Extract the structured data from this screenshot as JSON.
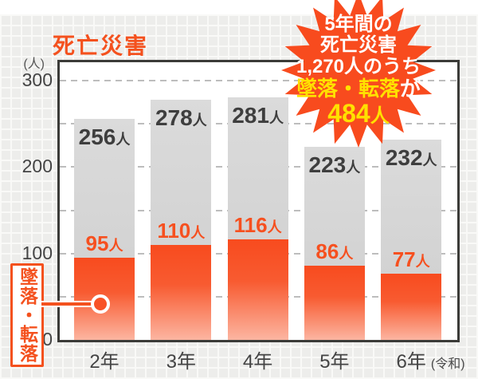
{
  "title": "死亡災害",
  "y_axis": {
    "unit": "(人)",
    "ticks": [
      {
        "label": "300",
        "value": 300
      },
      {
        "label": "200",
        "value": 200
      },
      {
        "label": "100",
        "value": 100
      },
      {
        "label": "0",
        "value": 0
      }
    ]
  },
  "x_axis": {
    "labels": [
      "2年",
      "3年",
      "4年",
      "5年",
      "6年"
    ],
    "era_suffix": "(令和)"
  },
  "chart_data": {
    "type": "bar",
    "stacked": true,
    "title": "死亡災害",
    "categories": [
      "2年",
      "3年",
      "4年",
      "5年",
      "6年"
    ],
    "x_note": "(令和)",
    "series": [
      {
        "name": "死亡災害（総数）",
        "color": "#d5d5d5",
        "values": [
          256,
          278,
          281,
          223,
          232
        ]
      },
      {
        "name": "墜落・転落",
        "color": "#f84b1e",
        "values": [
          95,
          110,
          116,
          86,
          77
        ]
      }
    ],
    "ylim": [
      0,
      300
    ],
    "ylabel": "(人)",
    "y_gridlines": [
      50,
      100,
      150,
      200,
      250,
      300
    ],
    "grid": "dashed",
    "legend_position": "none",
    "value_suffix": "人"
  },
  "badge": {
    "line1": "5年間の",
    "line2": "死亡災害",
    "line3": "1,270人のうち",
    "line4_highlight": "墜落・転落",
    "line4_tail": "が",
    "line5_value": "484",
    "line5_suffix": "人",
    "bg_color": "#f84b1e",
    "text_color": "#ffffff",
    "highlight_color": "#ffe100"
  },
  "callout": {
    "label": "墜落・転落",
    "color": "#f4511e"
  },
  "colors": {
    "accent": "#f4511e",
    "bar_total": "#d5d5d5",
    "bar_falls_top": "#f84b1e",
    "bar_falls_bottom": "#fcb5a1",
    "text_dark": "#3e3e3e",
    "grid_dash": "#bdbdbd",
    "paper": "#ededeb"
  }
}
